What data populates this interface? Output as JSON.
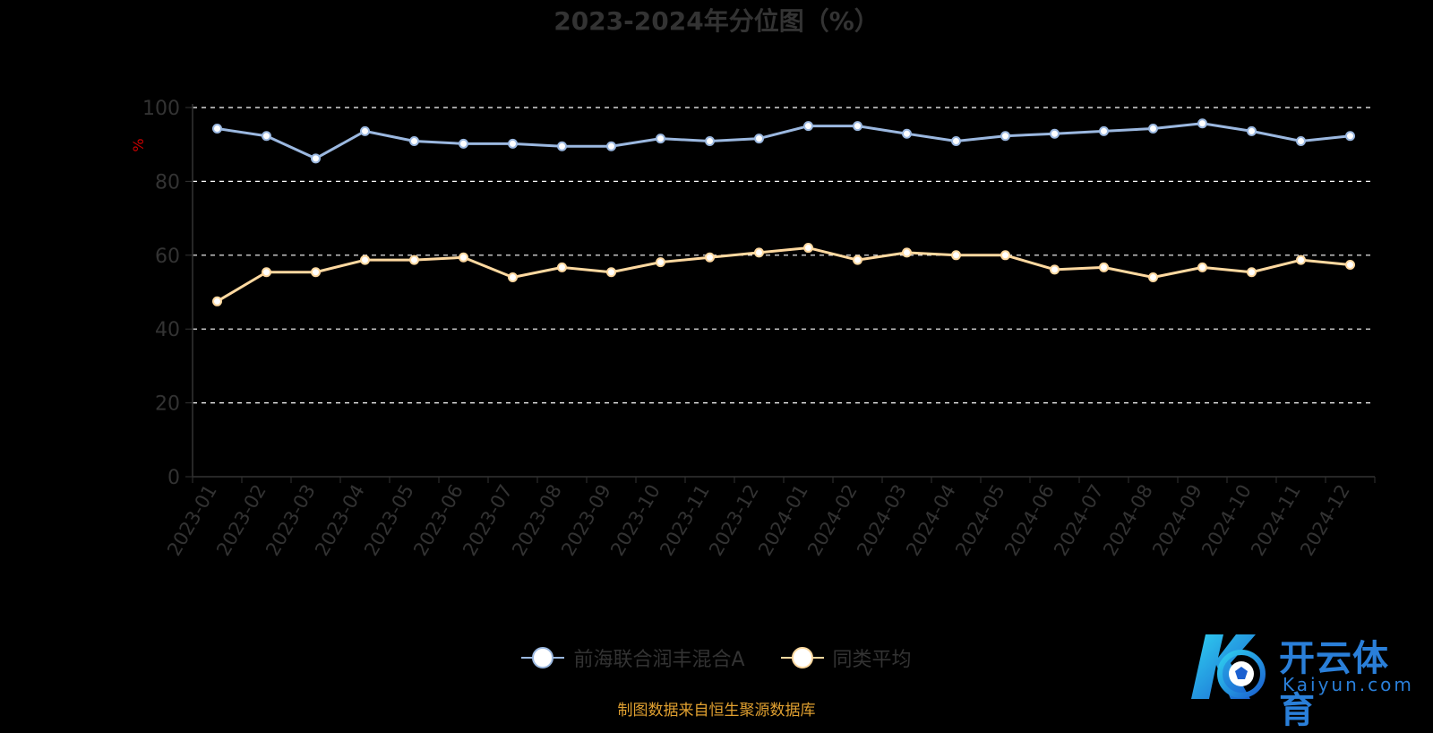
{
  "chart_data": {
    "type": "line",
    "title": "2023-2024年分位图（%）",
    "ylabel": "%",
    "xlabel": "",
    "ylim": [
      0,
      100
    ],
    "yticks": [
      0,
      20,
      40,
      60,
      80,
      100
    ],
    "grid": true,
    "legend_position": "bottom",
    "categories": [
      "2023-01",
      "2023-02",
      "2023-03",
      "2023-04",
      "2023-05",
      "2023-06",
      "2023-07",
      "2023-08",
      "2023-09",
      "2023-10",
      "2023-11",
      "2023-12",
      "2024-01",
      "2024-02",
      "2024-03",
      "2024-04",
      "2024-05",
      "2024-06",
      "2024-07",
      "2024-08",
      "2024-09",
      "2024-10",
      "2024-11",
      "2024-12"
    ],
    "series": [
      {
        "name": "前海联合润丰混合A",
        "color": "#9bb8e0",
        "values": [
          94.3,
          92.3,
          86.2,
          93.6,
          90.9,
          90.2,
          90.2,
          89.5,
          89.5,
          91.6,
          90.9,
          91.6,
          95.0,
          95.0,
          92.9,
          90.9,
          92.3,
          92.9,
          93.6,
          94.3,
          95.7,
          93.6,
          90.9,
          92.3
        ]
      },
      {
        "name": "同类平均",
        "color": "#ffd9a0",
        "values": [
          47.5,
          55.4,
          55.4,
          58.7,
          58.7,
          59.4,
          54.0,
          56.7,
          55.4,
          58.1,
          59.4,
          60.7,
          62.0,
          58.7,
          60.7,
          60.0,
          60.0,
          56.1,
          56.7,
          54.0,
          56.7,
          55.4,
          58.7,
          57.4
        ]
      }
    ]
  },
  "source": "制图数据来自恒生聚源数据库",
  "watermark": {
    "name_cn": "开云体育",
    "name_en": "Kaiyun.com"
  },
  "colors": {
    "axis": "#333333",
    "grid": "#ffffff",
    "ylabel": "#cc0000"
  }
}
